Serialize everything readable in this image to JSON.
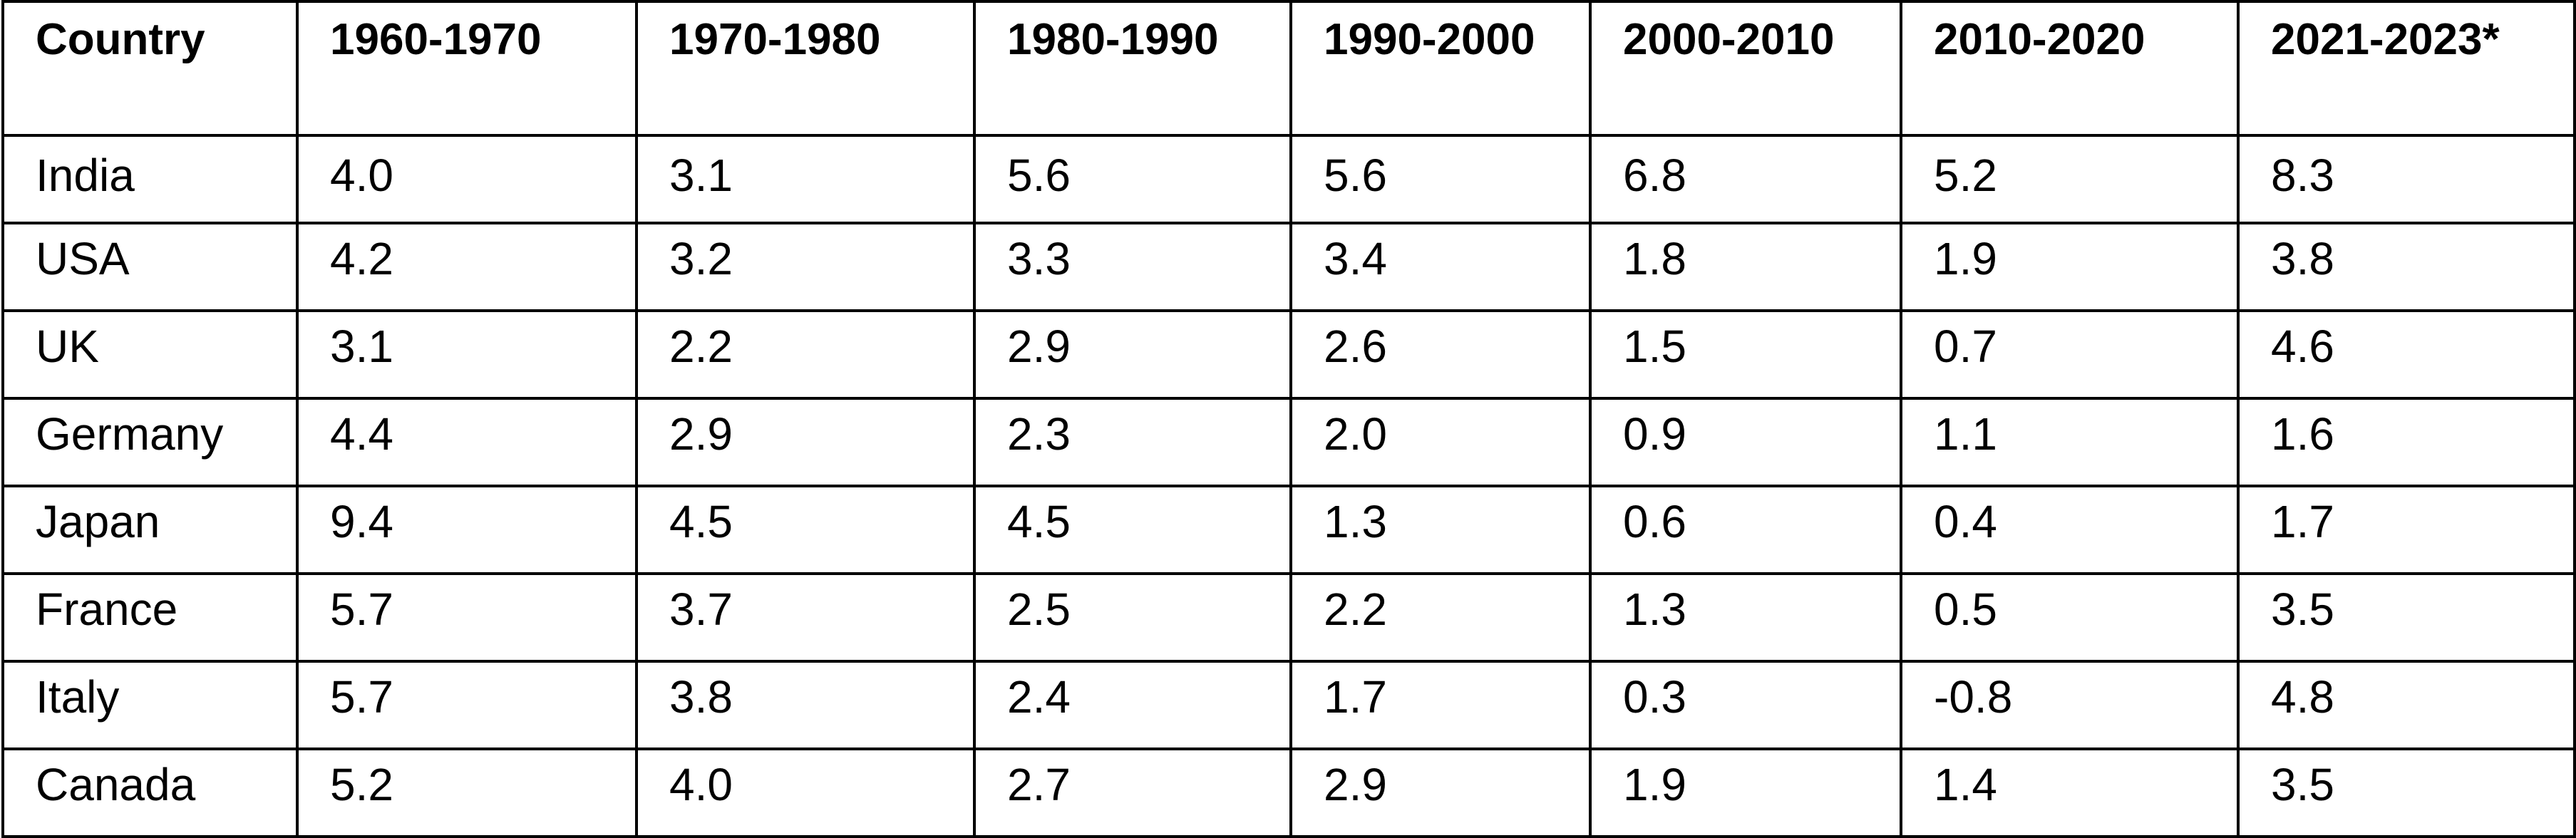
{
  "table": {
    "headers": [
      "Country",
      "1960-1970",
      "1970-1980",
      "1980-1990",
      "1990-2000",
      "2000-2010",
      "2010-2020",
      "2021-2023*"
    ],
    "rows": [
      [
        "India",
        "4.0",
        "3.1",
        "5.6",
        "5.6",
        "6.8",
        "5.2",
        "8.3"
      ],
      [
        "USA",
        "4.2",
        "3.2",
        "3.3",
        "3.4",
        "1.8",
        "1.9",
        "3.8"
      ],
      [
        "UK",
        "3.1",
        "2.2",
        "2.9",
        "2.6",
        "1.5",
        "0.7",
        "4.6"
      ],
      [
        "Germany",
        "4.4",
        "2.9",
        "2.3",
        "2.0",
        "0.9",
        "1.1",
        "1.6"
      ],
      [
        "Japan",
        "9.4",
        "4.5",
        "4.5",
        "1.3",
        "0.6",
        "0.4",
        "1.7"
      ],
      [
        "France",
        "5.7",
        "3.7",
        "2.5",
        "2.2",
        "1.3",
        "0.5",
        "3.5"
      ],
      [
        "Italy",
        "5.7",
        "3.8",
        "2.4",
        "1.7",
        "0.3",
        "-0.8",
        "4.8"
      ],
      [
        "Canada",
        "5.2",
        "4.0",
        "2.7",
        "2.9",
        "1.9",
        "1.4",
        "3.5"
      ]
    ]
  }
}
